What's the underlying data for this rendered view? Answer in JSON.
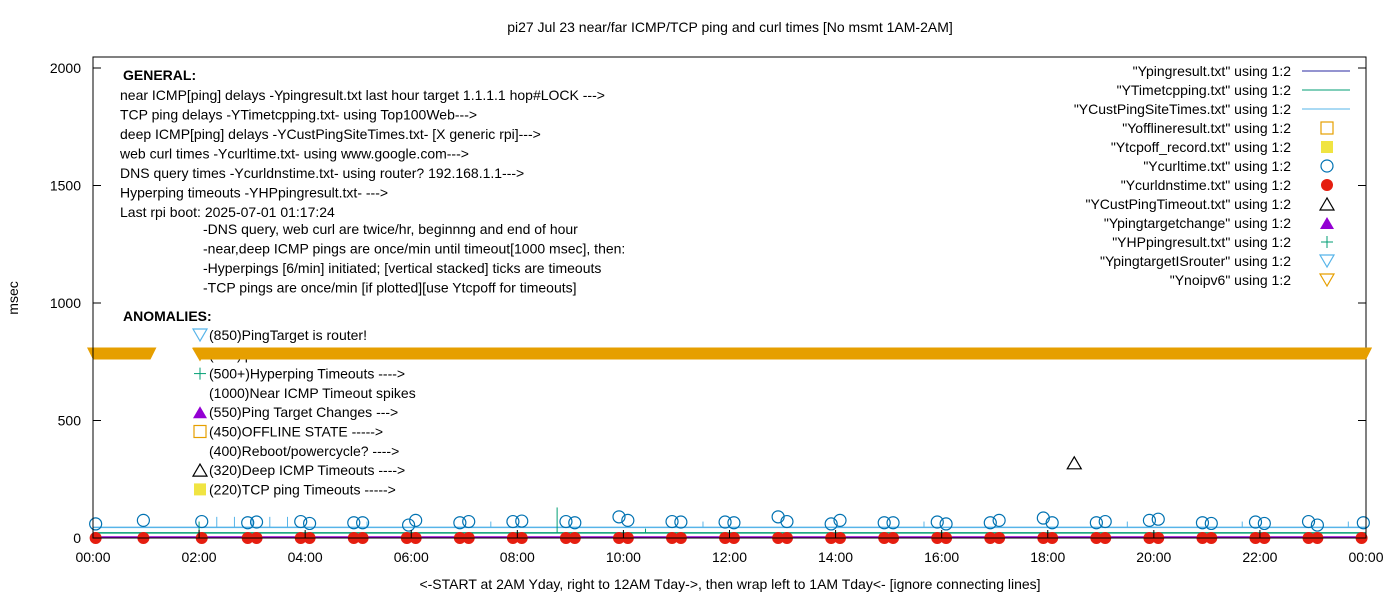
{
  "chart_data": {
    "type": "scatter",
    "title": "pi27 Jul 23  near/far ICMP/TCP ping and curl times [No msmt 1AM-2AM]",
    "xlabel": "<-START at 2AM Yday, right to 12AM Tday->, then wrap left to 1AM Tday<- [ignore connecting lines]",
    "ylabel": "msec",
    "xlim": [
      "00:00",
      "24:00"
    ],
    "ylim": [
      0,
      2050
    ],
    "xticks": [
      "00:00",
      "02:00",
      "04:00",
      "06:00",
      "08:00",
      "10:00",
      "12:00",
      "14:00",
      "16:00",
      "18:00",
      "20:00",
      "22:00",
      "00:00"
    ],
    "yticks": [
      0,
      500,
      1000,
      1500,
      2000
    ],
    "grid": false,
    "legend_position": "top-right",
    "legend": [
      {
        "label": "\"Ypingresult.txt\" using 1:2",
        "style": "line",
        "color": "#2a2aa0"
      },
      {
        "label": "\"YTimetcpping.txt\" using 1:2",
        "style": "line",
        "color": "#009e73"
      },
      {
        "label": "\"YCustPingSiteTimes.txt\" using 1:2",
        "style": "line",
        "color": "#56b4e9"
      },
      {
        "label": "\"Yofflineresult.txt\" using 1:2",
        "style": "open-square",
        "color": "#e69f00"
      },
      {
        "label": "\"Ytcpoff_record.txt\" using 1:2",
        "style": "filled-square",
        "color": "#f0e442"
      },
      {
        "label": "\"Ycurltime.txt\" using 1:2",
        "style": "open-circle",
        "color": "#0072b2"
      },
      {
        "label": "\"Ycurldnstime.txt\" using 1:2",
        "style": "filled-circle",
        "color": "#e51e10"
      },
      {
        "label": "\"YCustPingTimeout.txt\" using 1:2",
        "style": "open-triangle",
        "color": "#000000"
      },
      {
        "label": "\"Ypingtargetchange\" using 1:2",
        "style": "filled-triangle",
        "color": "#9400d3"
      },
      {
        "label": "\"YHPpingresult.txt\" using 1:2",
        "style": "plus",
        "color": "#009e73"
      },
      {
        "label": "\"YpingtargetISrouter\" using 1:2",
        "style": "open-down-triangle",
        "color": "#56b4e9"
      },
      {
        "label": "\"Ynoipv6\" using 1:2",
        "style": "open-down-triangle",
        "color": "#e69f00"
      }
    ],
    "series": {
      "ypingresult_baseline": 3,
      "ytimetcpping_baseline": 22,
      "ycustping_baseline": 45,
      "ytimetcpping_spikes": [
        [
          "02:00",
          70
        ],
        [
          "08:45",
          130
        ],
        [
          "10:25",
          40
        ]
      ],
      "ycustping_spikes": [
        [
          "02:20",
          90
        ],
        [
          "02:40",
          90
        ],
        [
          "03:00",
          90
        ],
        [
          "03:20",
          90
        ],
        [
          "03:40",
          90
        ],
        [
          "05:10",
          70
        ],
        [
          "07:30",
          70
        ],
        [
          "11:30",
          70
        ],
        [
          "15:40",
          70
        ],
        [
          "19:30",
          70
        ],
        [
          "21:40",
          70
        ],
        [
          "23:40",
          70
        ]
      ],
      "ycurltime": [
        [
          "00:03",
          60
        ],
        [
          "00:57",
          75
        ],
        [
          "02:03",
          70
        ],
        [
          "02:55",
          65
        ],
        [
          "03:05",
          68
        ],
        [
          "03:55",
          70
        ],
        [
          "04:05",
          62
        ],
        [
          "04:55",
          65
        ],
        [
          "05:05",
          65
        ],
        [
          "05:57",
          55
        ],
        [
          "06:05",
          75
        ],
        [
          "06:55",
          65
        ],
        [
          "07:05",
          70
        ],
        [
          "07:55",
          70
        ],
        [
          "08:05",
          72
        ],
        [
          "08:55",
          70
        ],
        [
          "09:05",
          65
        ],
        [
          "09:55",
          90
        ],
        [
          "10:05",
          75
        ],
        [
          "10:55",
          70
        ],
        [
          "11:05",
          68
        ],
        [
          "11:55",
          68
        ],
        [
          "12:05",
          65
        ],
        [
          "12:55",
          90
        ],
        [
          "13:05",
          70
        ],
        [
          "13:55",
          60
        ],
        [
          "14:05",
          75
        ],
        [
          "14:55",
          65
        ],
        [
          "15:05",
          65
        ],
        [
          "15:55",
          68
        ],
        [
          "16:05",
          60
        ],
        [
          "16:55",
          65
        ],
        [
          "17:05",
          75
        ],
        [
          "17:55",
          85
        ],
        [
          "18:05",
          65
        ],
        [
          "18:55",
          65
        ],
        [
          "19:05",
          70
        ],
        [
          "19:55",
          75
        ],
        [
          "20:05",
          80
        ],
        [
          "20:55",
          65
        ],
        [
          "21:05",
          62
        ],
        [
          "21:55",
          68
        ],
        [
          "22:05",
          62
        ],
        [
          "22:55",
          70
        ],
        [
          "23:05",
          55
        ],
        [
          "23:57",
          65
        ]
      ],
      "ycurldnstime": [
        [
          "00:03",
          0
        ],
        [
          "00:57",
          0
        ],
        [
          "02:03",
          0
        ],
        [
          "02:55",
          0
        ],
        [
          "03:05",
          0
        ],
        [
          "03:55",
          0
        ],
        [
          "04:05",
          0
        ],
        [
          "04:55",
          0
        ],
        [
          "05:05",
          0
        ],
        [
          "05:55",
          0
        ],
        [
          "06:05",
          0
        ],
        [
          "06:55",
          0
        ],
        [
          "07:05",
          0
        ],
        [
          "07:55",
          0
        ],
        [
          "08:05",
          0
        ],
        [
          "08:55",
          0
        ],
        [
          "09:05",
          0
        ],
        [
          "09:55",
          0
        ],
        [
          "10:05",
          0
        ],
        [
          "10:55",
          0
        ],
        [
          "11:05",
          0
        ],
        [
          "11:55",
          0
        ],
        [
          "12:05",
          0
        ],
        [
          "12:55",
          0
        ],
        [
          "13:05",
          0
        ],
        [
          "13:55",
          0
        ],
        [
          "14:05",
          0
        ],
        [
          "14:55",
          0
        ],
        [
          "15:05",
          0
        ],
        [
          "15:55",
          0
        ],
        [
          "16:05",
          0
        ],
        [
          "16:55",
          0
        ],
        [
          "17:05",
          0
        ],
        [
          "17:55",
          0
        ],
        [
          "18:05",
          0
        ],
        [
          "18:55",
          0
        ],
        [
          "19:05",
          0
        ],
        [
          "19:55",
          0
        ],
        [
          "20:05",
          0
        ],
        [
          "20:55",
          0
        ],
        [
          "21:05",
          0
        ],
        [
          "21:55",
          0
        ],
        [
          "22:05",
          0
        ],
        [
          "22:55",
          0
        ],
        [
          "23:05",
          0
        ],
        [
          "23:55",
          0
        ]
      ],
      "ycustpingtimeout": [
        [
          "18:30",
          320
        ]
      ],
      "ynoipv6": {
        "value": 785,
        "ranges": [
          [
            "00:00",
            "01:05"
          ],
          [
            "02:00",
            "24:00"
          ]
        ]
      }
    },
    "annotations": {
      "general_heading": "GENERAL:",
      "general_lines": [
        "near ICMP[ping] delays -Ypingresult.txt last hour target 1.1.1.1 hop#LOCK --->",
        "TCP ping delays -YTimetcpping.txt- using Top100Web--->",
        "deep ICMP[ping] delays -YCustPingSiteTimes.txt- [X generic rpi]--->",
        "web curl times -Ycurltime.txt- using www.google.com--->",
        "DNS query times -Ycurldnstime.txt- using router? 192.168.1.1--->",
        "Hyperping timeouts -YHPpingresult.txt- --->",
        "Last rpi boot: 2025-07-01 01:17:24"
      ],
      "notes": [
        "-DNS query, web curl are twice/hr, beginnng and end of hour",
        "-near,deep ICMP pings are once/min until timeout[1000 msec], then:",
        "  -Hyperpings [6/min] initiated; [vertical stacked] ticks are timeouts",
        "-TCP pings are once/min [if plotted][use Ytcpoff for timeouts]"
      ],
      "anomalies_heading": "ANOMALIES:",
      "anomalies": [
        {
          "text": "(850)PingTarget is router!",
          "marker": "open-down-triangle",
          "color": "#56b4e9"
        },
        {
          "text": "(785)ipv6 failed",
          "marker": "open-down-triangle",
          "color": "#e69f00"
        },
        {
          "text": "(500+)Hyperping Timeouts ---->",
          "marker": "plus",
          "color": "#009e73"
        },
        {
          "text": "(1000)Near ICMP Timeout spikes",
          "marker": "none",
          "color": ""
        },
        {
          "text": "(550)Ping Target Changes --->",
          "marker": "filled-triangle",
          "color": "#9400d3"
        },
        {
          "text": "(450)OFFLINE STATE ----->",
          "marker": "open-square",
          "color": "#e69f00"
        },
        {
          "text": "(400)Reboot/powercycle? ---->",
          "marker": "none",
          "color": ""
        },
        {
          "text": "(320)Deep ICMP Timeouts ---->",
          "marker": "open-triangle",
          "color": "#000000"
        },
        {
          "text": "(220)TCP ping Timeouts ----->",
          "marker": "filled-square",
          "color": "#f0e442"
        }
      ]
    }
  }
}
